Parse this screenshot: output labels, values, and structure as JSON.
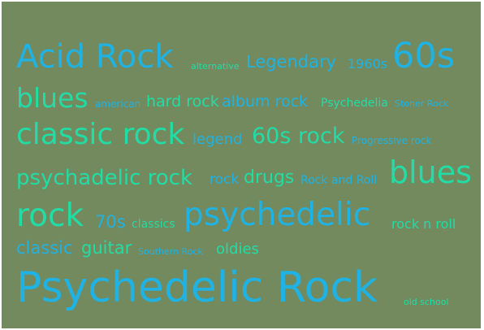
{
  "tags": [
    {
      "text": "Acid Rock",
      "color": "#1fb2e2"
    },
    {
      "text": "alternative",
      "color": "#22dca6"
    },
    {
      "text": "Legendary",
      "color": "#1fb2e2"
    },
    {
      "text": "1960s",
      "color": "#1fb2e2"
    },
    {
      "text": "60s",
      "color": "#1fb2e2"
    },
    {
      "text": "blues",
      "color": "#22dca6"
    },
    {
      "text": "american",
      "color": "#1fb2e2"
    },
    {
      "text": "hard rock",
      "color": "#22dca6"
    },
    {
      "text": "album rock",
      "color": "#1fb2e2"
    },
    {
      "text": "Psychedelia",
      "color": "#22dca6"
    },
    {
      "text": "Stoner Rock",
      "color": "#1fb2e2"
    },
    {
      "text": "classic rock",
      "color": "#22dca6"
    },
    {
      "text": "legend",
      "color": "#1fb2e2"
    },
    {
      "text": "60s rock",
      "color": "#22dca6"
    },
    {
      "text": "Progressive rock",
      "color": "#1fb2e2"
    },
    {
      "text": "psychadelic rock",
      "color": "#22dca6"
    },
    {
      "text": "rock",
      "color": "#1fb2e2"
    },
    {
      "text": "drugs",
      "color": "#22dca6"
    },
    {
      "text": "Rock and Roll",
      "color": "#1fb2e2"
    },
    {
      "text": "blues",
      "color": "#22dca6"
    },
    {
      "text": "rock",
      "color": "#22dca6"
    },
    {
      "text": "70s",
      "color": "#1fb2e2"
    },
    {
      "text": "classics",
      "color": "#22dca6"
    },
    {
      "text": "psychedelic",
      "color": "#1fb2e2"
    },
    {
      "text": "rock n roll",
      "color": "#22dca6"
    },
    {
      "text": "classic",
      "color": "#1fb2e2"
    },
    {
      "text": "guitar",
      "color": "#22dca6"
    },
    {
      "text": "Southern Rock",
      "color": "#1fb2e2"
    },
    {
      "text": "oldies",
      "color": "#22dca6"
    },
    {
      "text": "Psychedelic Rock",
      "color": "#1fb2e2"
    },
    {
      "text": "old school",
      "color": "#22dca6"
    }
  ]
}
